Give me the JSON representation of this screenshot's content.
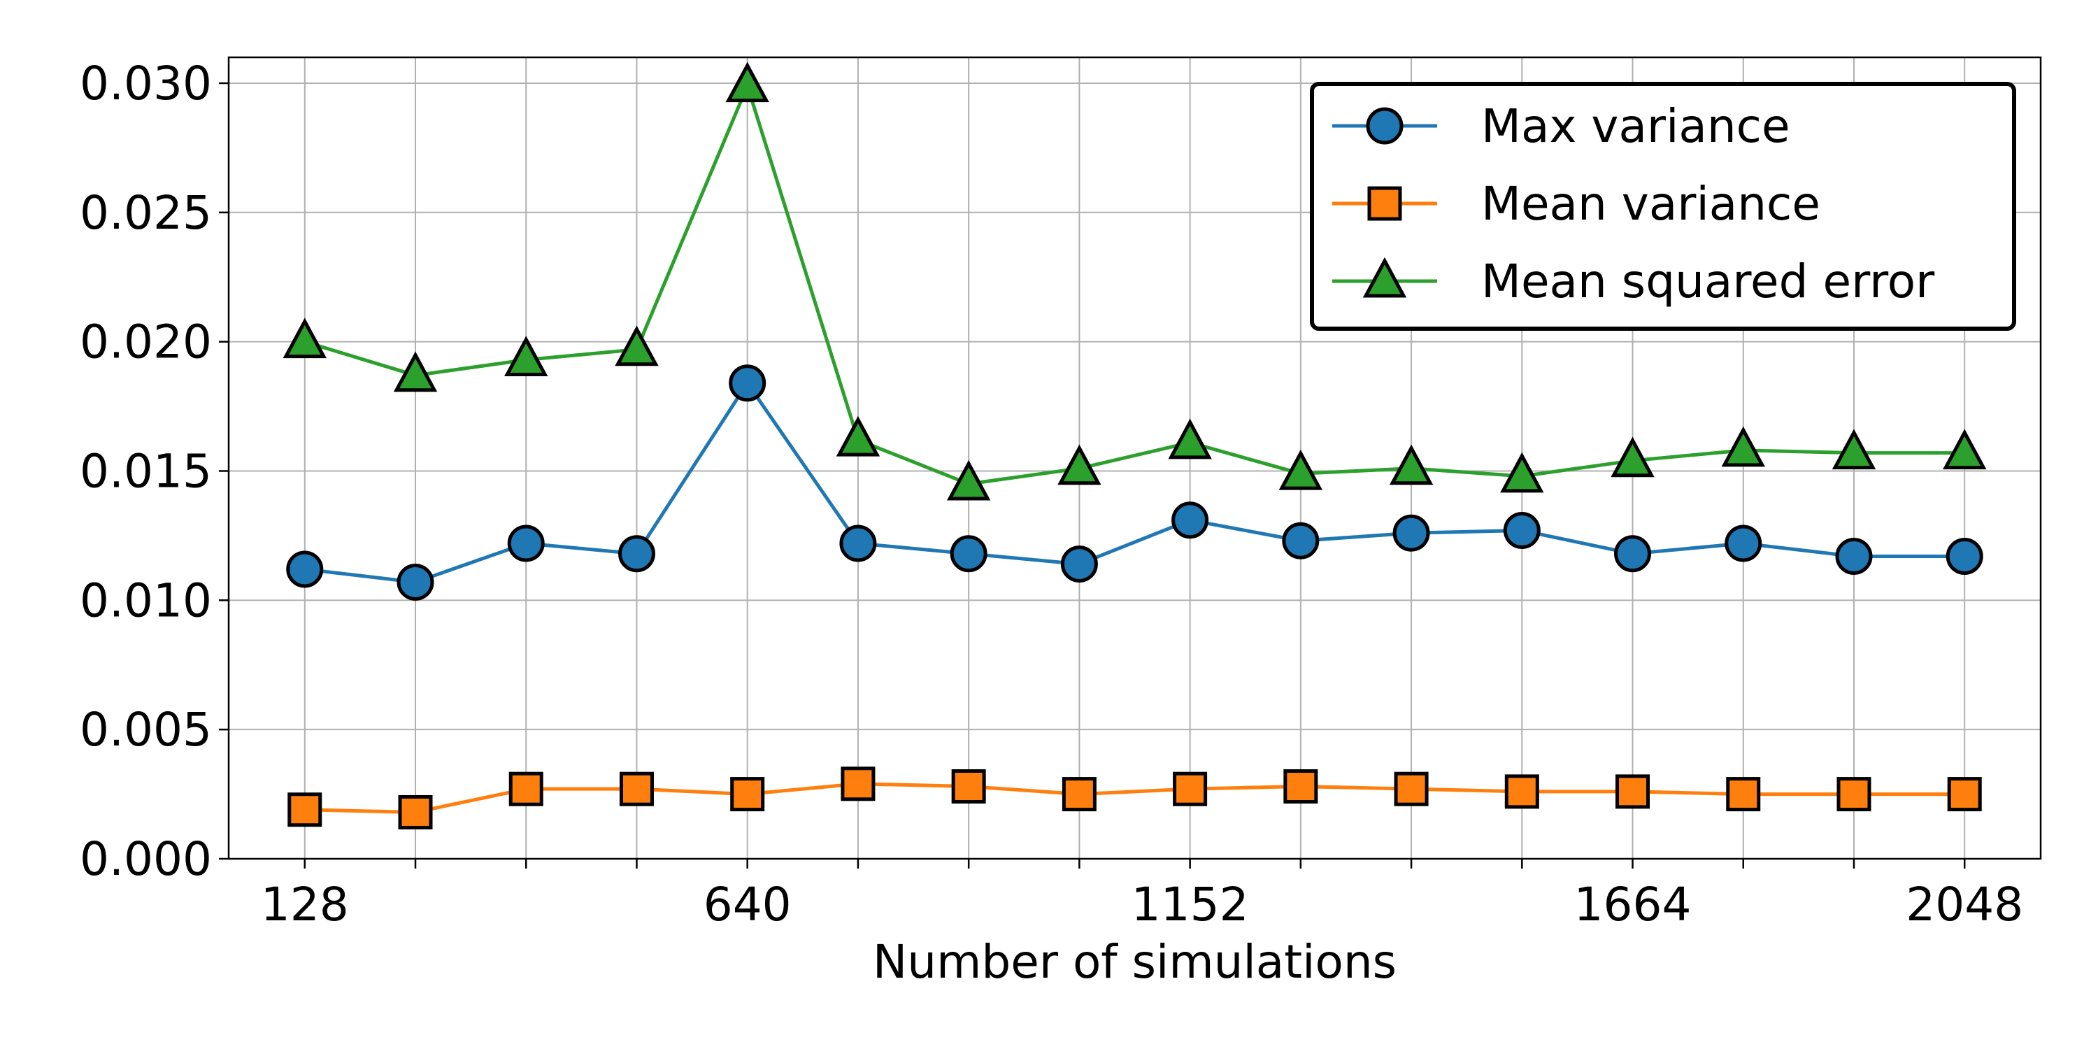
{
  "chart_data": {
    "type": "line",
    "title": "",
    "xlabel": "Number of simulations",
    "ylabel": "",
    "x": [
      128,
      256,
      384,
      512,
      640,
      768,
      896,
      1024,
      1152,
      1280,
      1408,
      1536,
      1664,
      1792,
      1920,
      2048
    ],
    "xlim": [
      40,
      2136
    ],
    "ylim": [
      0,
      0.031
    ],
    "x_ticks": [
      128,
      256,
      384,
      512,
      640,
      768,
      896,
      1024,
      1152,
      1280,
      1408,
      1536,
      1664,
      1792,
      1920,
      2048
    ],
    "x_tick_labels": [
      "128",
      "",
      "",
      "",
      "640",
      "",
      "",
      "",
      "1152",
      "",
      "",
      "",
      "1664",
      "",
      "",
      "2048"
    ],
    "y_ticks": [
      0,
      0.005,
      0.01,
      0.015,
      0.02,
      0.025,
      0.03
    ],
    "y_tick_labels": [
      "0.000",
      "0.005",
      "0.010",
      "0.015",
      "0.020",
      "0.025",
      "0.030"
    ],
    "grid": true,
    "legend_position": "top-right",
    "series": [
      {
        "name": "Max variance",
        "color": "#1f77b4",
        "marker": "circle",
        "values": [
          0.0112,
          0.0107,
          0.0122,
          0.0118,
          0.0184,
          0.0122,
          0.0118,
          0.0114,
          0.0131,
          0.0123,
          0.0126,
          0.0127,
          0.0118,
          0.0122,
          0.0117,
          0.0117
        ]
      },
      {
        "name": "Mean variance",
        "color": "#ff7f0e",
        "marker": "square",
        "values": [
          0.0019,
          0.0018,
          0.0027,
          0.0027,
          0.0025,
          0.0029,
          0.0028,
          0.0025,
          0.0027,
          0.0028,
          0.0027,
          0.0026,
          0.0026,
          0.0025,
          0.0025,
          0.0025
        ]
      },
      {
        "name": "Mean squared error",
        "color": "#2ca02c",
        "marker": "triangle",
        "values": [
          0.02,
          0.0187,
          0.0193,
          0.0197,
          0.0299,
          0.0162,
          0.0145,
          0.0151,
          0.0161,
          0.0149,
          0.0151,
          0.0148,
          0.0154,
          0.0158,
          0.0157,
          0.0157
        ]
      }
    ]
  }
}
